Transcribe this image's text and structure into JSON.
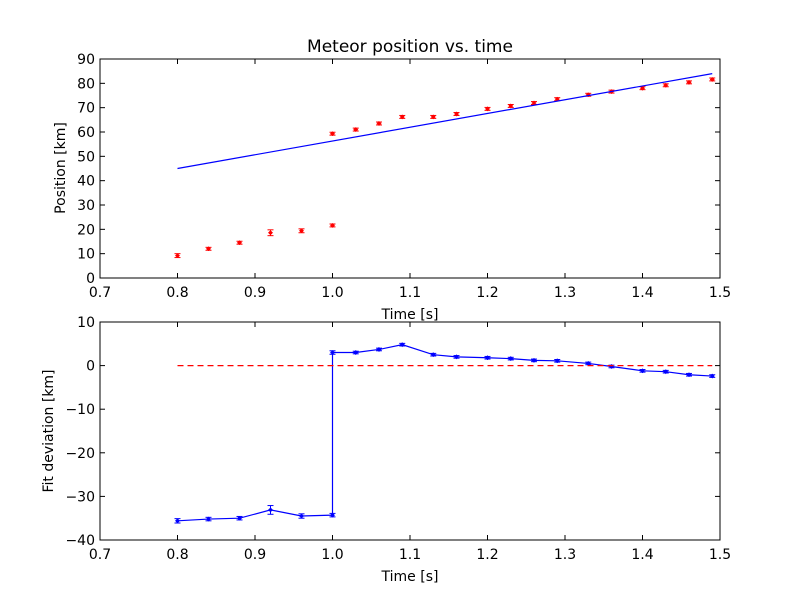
{
  "chart_data": [
    {
      "type": "scatter",
      "title": "Meteor position vs. time",
      "xlabel": "Time [s]",
      "ylabel": "Position [km]",
      "xlim": [
        0.7,
        1.5
      ],
      "ylim": [
        0,
        90
      ],
      "xticks": [
        "0.7",
        "0.8",
        "0.9",
        "1.0",
        "1.1",
        "1.2",
        "1.3",
        "1.4",
        "1.5"
      ],
      "yticks": [
        "0",
        "10",
        "20",
        "30",
        "40",
        "50",
        "60",
        "70",
        "80",
        "90"
      ],
      "grid": false,
      "series": [
        {
          "kind": "errorbar-points",
          "color": "#ff0000",
          "x": [
            0.8,
            0.84,
            0.88,
            0.92,
            0.96,
            1.0,
            1.0,
            1.03,
            1.06,
            1.09,
            1.13,
            1.16,
            1.2,
            1.23,
            1.26,
            1.29,
            1.33,
            1.36,
            1.4,
            1.43,
            1.46,
            1.49
          ],
          "y": [
            9.2,
            12.0,
            14.5,
            18.6,
            19.4,
            21.6,
            59.3,
            61.0,
            63.5,
            66.2,
            66.2,
            67.4,
            69.5,
            70.7,
            71.9,
            73.5,
            75.3,
            76.6,
            78.0,
            79.2,
            80.4,
            81.6
          ],
          "yerr": [
            0.8,
            0.6,
            0.6,
            1.2,
            0.8,
            0.6,
            0.6,
            0.6,
            0.6,
            0.6,
            0.6,
            0.6,
            0.6,
            0.6,
            0.6,
            0.6,
            0.6,
            0.6,
            0.6,
            0.6,
            0.6,
            0.6
          ]
        },
        {
          "kind": "line",
          "color": "#0000ff",
          "x": [
            0.8,
            1.49
          ],
          "y": [
            45.0,
            84.0
          ]
        }
      ]
    },
    {
      "type": "line",
      "title": "",
      "xlabel": "Time [s]",
      "ylabel": "Fit deviation [km]",
      "xlim": [
        0.7,
        1.5
      ],
      "ylim": [
        -40,
        10
      ],
      "xticks": [
        "0.7",
        "0.8",
        "0.9",
        "1.0",
        "1.1",
        "1.2",
        "1.3",
        "1.4",
        "1.5"
      ],
      "yticks": [
        "−40",
        "−30",
        "−20",
        "−10",
        "0",
        "10"
      ],
      "grid": false,
      "series": [
        {
          "kind": "errorbar-line",
          "color": "#0000ff",
          "x": [
            0.8,
            0.84,
            0.88,
            0.92,
            0.96,
            1.0,
            1.0,
            1.03,
            1.06,
            1.09,
            1.13,
            1.16,
            1.2,
            1.23,
            1.26,
            1.29,
            1.33,
            1.36,
            1.4,
            1.43,
            1.46,
            1.49
          ],
          "y": [
            -35.6,
            -35.2,
            -35.0,
            -33.1,
            -34.5,
            -34.3,
            3.0,
            3.0,
            3.7,
            4.8,
            2.5,
            2.0,
            1.8,
            1.6,
            1.2,
            1.1,
            0.5,
            -0.2,
            -1.2,
            -1.4,
            -2.1,
            -2.4
          ],
          "yerr": [
            0.5,
            0.4,
            0.4,
            1.0,
            0.5,
            0.4,
            0.4,
            0.3,
            0.3,
            0.3,
            0.3,
            0.3,
            0.3,
            0.3,
            0.3,
            0.3,
            0.3,
            0.3,
            0.3,
            0.3,
            0.3,
            0.3
          ]
        },
        {
          "kind": "dashed-line",
          "color": "#ff0000",
          "x": [
            0.8,
            1.49
          ],
          "y": [
            0,
            0
          ]
        }
      ]
    }
  ]
}
